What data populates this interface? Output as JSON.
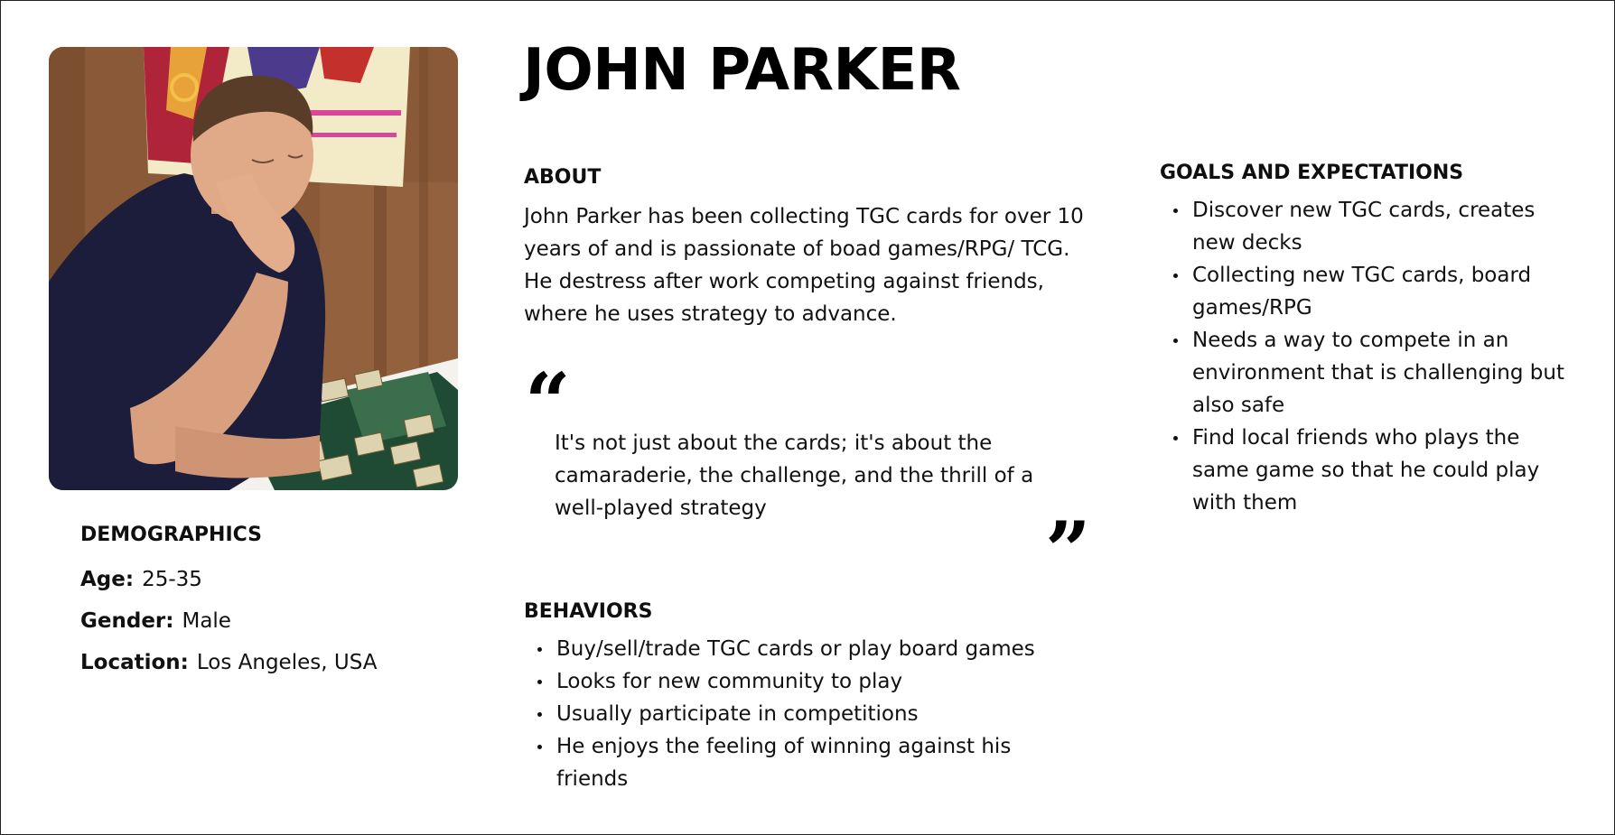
{
  "persona": {
    "name": "JOHN PARKER"
  },
  "demographics": {
    "heading": "DEMOGRAPHICS",
    "items": [
      {
        "label": "Age:",
        "value": "25-35"
      },
      {
        "label": "Gender:",
        "value": "Male"
      },
      {
        "label": "Location:",
        "value": "Los Angeles, USA"
      }
    ]
  },
  "about": {
    "heading": "ABOUT",
    "text": "John Parker has been collecting TGC cards for over 10 years of and is passionate of boad games/RPG/ TCG. He destress after work competing against friends, where he uses strategy to advance."
  },
  "quote": {
    "open_mark": "“",
    "text": "It's not just about the cards; it's about the camaraderie, the challenge, and the thrill of a well-played strategy",
    "close_mark": "”"
  },
  "behaviors": {
    "heading": "BEHAVIORS",
    "items": [
      "Buy/sell/trade TGC cards or play board games",
      "Looks for new community to play",
      "Usually participate in competitions",
      "He enjoys the feeling of winning against his friends"
    ]
  },
  "goals": {
    "heading": "GOALS AND EXPECTATIONS",
    "items": [
      "Discover new TGC cards, creates new decks",
      "Collecting new TGC cards, board games/RPG",
      "Needs a way to compete in an environment that is challenging but also safe",
      "Find local friends who plays the same game so that he could play with them"
    ]
  },
  "colors": {
    "text": "#111111",
    "border": "#222222",
    "background": "#ffffff"
  }
}
